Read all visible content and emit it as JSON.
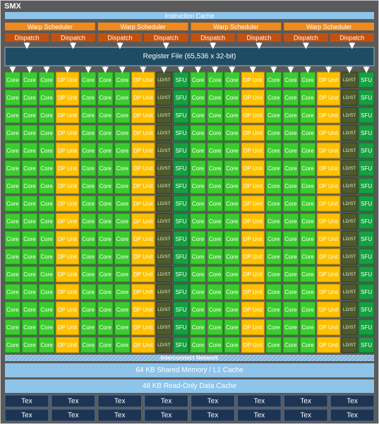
{
  "title": "SMX",
  "instruction_cache": "Instruction Cache",
  "warp_schedulers": [
    "Warp Scheduler",
    "Warp Scheduler",
    "Warp Scheduler",
    "Warp Scheduler"
  ],
  "dispatch_units": [
    "Dispatch",
    "Dispatch",
    "Dispatch",
    "Dispatch",
    "Dispatch",
    "Dispatch",
    "Dispatch",
    "Dispatch"
  ],
  "register_file": "Register File (65,536 x 32-bit)",
  "unit_rows": [
    [
      "Core",
      "Core",
      "Core",
      "DP Unit",
      "Core",
      "Core",
      "Core",
      "DP Unit",
      "LD/ST",
      "SFU",
      "Core",
      "Core",
      "Core",
      "DP Unit",
      "Core",
      "Core",
      "Core",
      "DP Unit",
      "LD/ST",
      "SFU"
    ],
    [
      "Core",
      "Core",
      "Core",
      "DP Unit",
      "Core",
      "Core",
      "Core",
      "DP Unit",
      "LD/ST",
      "SFU",
      "Core",
      "Core",
      "Core",
      "DP Unit",
      "Core",
      "Core",
      "Core",
      "DP Unit",
      "LD/ST",
      "SFU"
    ],
    [
      "Core",
      "Core",
      "Core",
      "DP Unit",
      "Core",
      "Core",
      "Core",
      "DP Unit",
      "LD/ST",
      "SFU",
      "Core",
      "Core",
      "Core",
      "DP Unit",
      "Core",
      "Core",
      "Core",
      "DP Unit",
      "LD/ST",
      "SFU"
    ],
    [
      "Core",
      "Core",
      "Core",
      "DP Unit",
      "Core",
      "Core",
      "Core",
      "DP Unit",
      "LD/ST",
      "SFU",
      "Core",
      "Core",
      "Core",
      "DP Unit",
      "Core",
      "Core",
      "Core",
      "DP Unit",
      "LD/ST",
      "SFU"
    ],
    [
      "Core",
      "Core",
      "Core",
      "DP Unit",
      "Core",
      "Core",
      "Core",
      "DP Unit",
      "LD/ST",
      "SFU",
      "Core",
      "Core",
      "Core",
      "DP Unit",
      "Core",
      "Core",
      "Core",
      "DP Unit",
      "LD/ST",
      "SFU"
    ],
    [
      "Core",
      "Core",
      "Core",
      "DP Unit",
      "Core",
      "Core",
      "Core",
      "DP Unit",
      "LD/ST",
      "SFU",
      "Core",
      "Core",
      "Core",
      "DP Unit",
      "Core",
      "Core",
      "Core",
      "DP Unit",
      "LD/ST",
      "SFU"
    ],
    [
      "Core",
      "Core",
      "Core",
      "DP Unit",
      "Core",
      "Core",
      "Core",
      "DP Unit",
      "LD/ST",
      "SFU",
      "Core",
      "Core",
      "Core",
      "DP Unit",
      "Core",
      "Core",
      "Core",
      "DP Unit",
      "LD/ST",
      "SFU"
    ],
    [
      "Core",
      "Core",
      "Core",
      "DP Unit",
      "Core",
      "Core",
      "Core",
      "DP Unit",
      "LD/ST",
      "SFU",
      "Core",
      "Core",
      "Core",
      "DP Unit",
      "Core",
      "Core",
      "Core",
      "DP Unit",
      "LD/ST",
      "SFU"
    ],
    [
      "Core",
      "Core",
      "Core",
      "DP Unit",
      "Core",
      "Core",
      "Core",
      "DP Unit",
      "LD/ST",
      "SFU",
      "Core",
      "Core",
      "Core",
      "DP Unit",
      "Core",
      "Core",
      "Core",
      "DP Unit",
      "LD/ST",
      "SFU"
    ],
    [
      "Core",
      "Core",
      "Core",
      "DP Unit",
      "Core",
      "Core",
      "Core",
      "DP Unit",
      "LD/ST",
      "SFU",
      "Core",
      "Core",
      "Core",
      "DP Unit",
      "Core",
      "Core",
      "Core",
      "DP Unit",
      "LD/ST",
      "SFU"
    ],
    [
      "Core",
      "Core",
      "Core",
      "DP Unit",
      "Core",
      "Core",
      "Core",
      "DP Unit",
      "LD/ST",
      "SFU",
      "Core",
      "Core",
      "Core",
      "DP Unit",
      "Core",
      "Core",
      "Core",
      "DP Unit",
      "LD/ST",
      "SFU"
    ],
    [
      "Core",
      "Core",
      "Core",
      "DP Unit",
      "Core",
      "Core",
      "Core",
      "DP Unit",
      "LD/ST",
      "SFU",
      "Core",
      "Core",
      "Core",
      "DP Unit",
      "Core",
      "Core",
      "Core",
      "DP Unit",
      "LD/ST",
      "SFU"
    ],
    [
      "Core",
      "Core",
      "Core",
      "DP Unit",
      "Core",
      "Core",
      "Core",
      "DP Unit",
      "LD/ST",
      "SFU",
      "Core",
      "Core",
      "Core",
      "DP Unit",
      "Core",
      "Core",
      "Core",
      "DP Unit",
      "LD/ST",
      "SFU"
    ],
    [
      "Core",
      "Core",
      "Core",
      "DP Unit",
      "Core",
      "Core",
      "Core",
      "DP Unit",
      "LD/ST",
      "SFU",
      "Core",
      "Core",
      "Core",
      "DP Unit",
      "Core",
      "Core",
      "Core",
      "DP Unit",
      "LD/ST",
      "SFU"
    ],
    [
      "Core",
      "Core",
      "Core",
      "DP Unit",
      "Core",
      "Core",
      "Core",
      "DP Unit",
      "LD/ST",
      "SFU",
      "Core",
      "Core",
      "Core",
      "DP Unit",
      "Core",
      "Core",
      "Core",
      "DP Unit",
      "LD/ST",
      "SFU"
    ],
    [
      "Core",
      "Core",
      "Core",
      "DP Unit",
      "Core",
      "Core",
      "Core",
      "DP Unit",
      "LD/ST",
      "SFU",
      "Core",
      "Core",
      "Core",
      "DP Unit",
      "Core",
      "Core",
      "Core",
      "DP Unit",
      "LD/ST",
      "SFU"
    ]
  ],
  "interconnect": "Interconnect Network",
  "shared_memory": "64 KB Shared Memory / L1 Cache",
  "read_only_cache": "48 KB Read-Only Data Cache",
  "tex_rows": [
    [
      "Tex",
      "Tex",
      "Tex",
      "Tex",
      "Tex",
      "Tex",
      "Tex",
      "Tex"
    ],
    [
      "Tex",
      "Tex",
      "Tex",
      "Tex",
      "Tex",
      "Tex",
      "Tex",
      "Tex"
    ]
  ]
}
